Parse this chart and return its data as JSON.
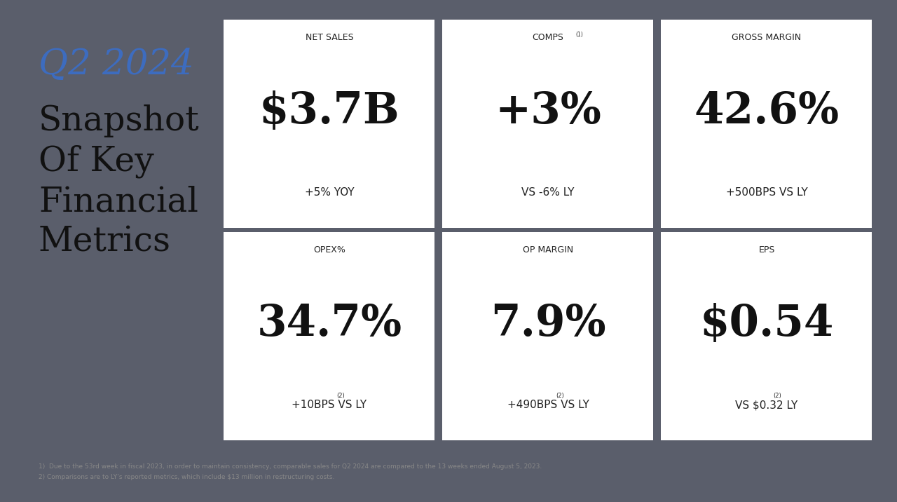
{
  "background_outer": "#5a5e6b",
  "background_inner": "#f0efe9",
  "card_bg": "#ffffff",
  "title_year": "Q2 2024",
  "title_year_color": "#3d6cbf",
  "title_lines": [
    "Snapshot",
    "Of Key",
    "Financial",
    "Metrics"
  ],
  "title_color": "#111111",
  "footnote1": "1)  Due to the 53rd week in fiscal 2023, in order to maintain consistency, comparable sales for Q2 2024 are compared to the 13 weeks ended August 5, 2023.",
  "footnote2": "2) Comparisons are to LY’s reported metrics, which include $13 million in restructuring costs.",
  "card_labels_raw": [
    "NET SALES",
    "COMPS",
    "GROSS MARGIN",
    "OPEX%",
    "OP MARGIN",
    "EPS"
  ],
  "card_labels_super": [
    "",
    "(1)",
    "",
    "",
    "",
    ""
  ],
  "card_values": [
    "$3.7B",
    "+3%",
    "42.6%",
    "34.7%",
    "7.9%",
    "$0.54"
  ],
  "card_subtexts": [
    "+5% YOY",
    "VS -6% LY",
    "+500BPS VS LY",
    "+10BPS VS LY",
    "+490BPS VS LY",
    "VS $0.32 LY"
  ],
  "card_subtexts_super": [
    "",
    "",
    "",
    "(2)",
    "(2)",
    "(2)"
  ]
}
